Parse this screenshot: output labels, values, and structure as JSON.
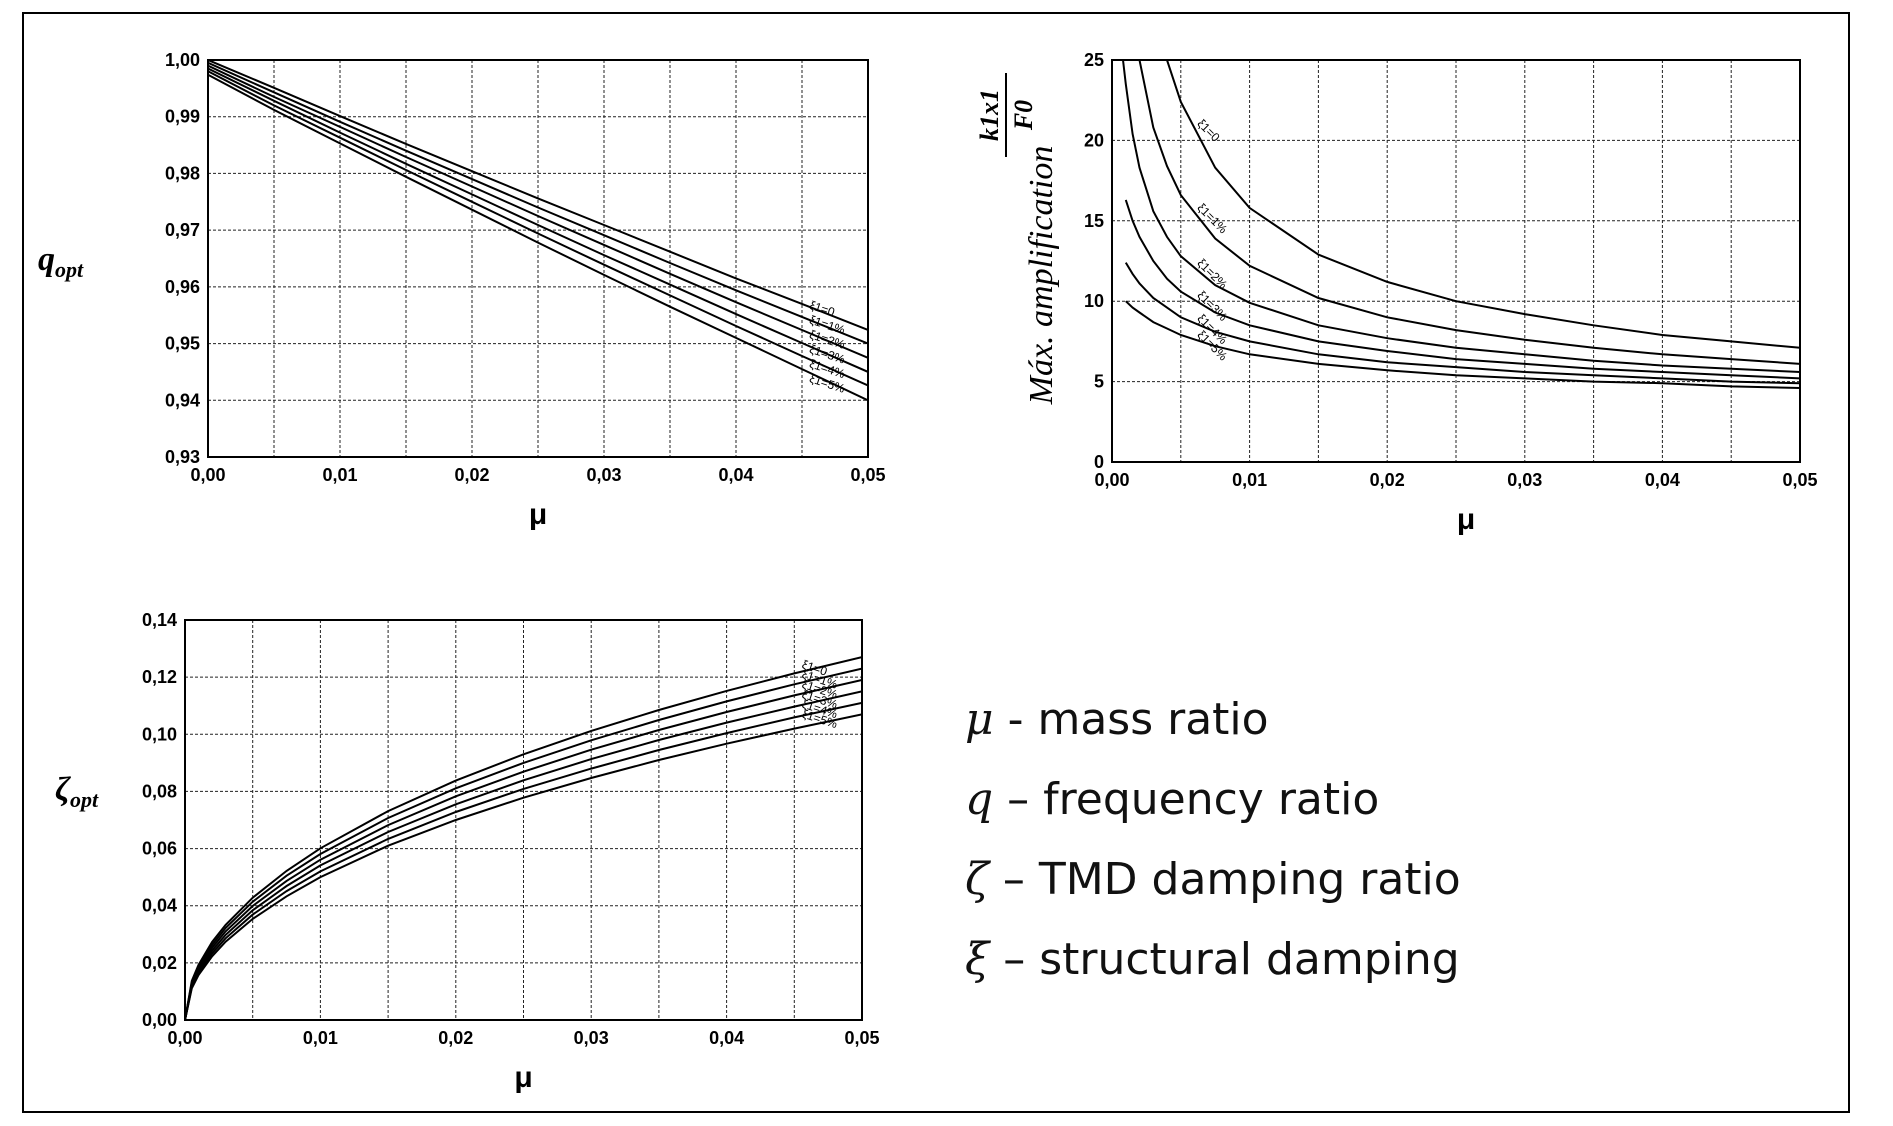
{
  "chart_data": [
    {
      "type": "line",
      "xlabel": "μ",
      "ylabel": "q",
      "ylabel_sub": "opt",
      "xlim": [
        0,
        0.05
      ],
      "ylim": [
        0.93,
        1.0
      ],
      "x_ticks": [
        "0,00",
        "0,01",
        "0,02",
        "0,03",
        "0,04",
        "0,05"
      ],
      "y_ticks": [
        "0,93",
        "0,94",
        "0,95",
        "0,96",
        "0,97",
        "0,98",
        "0,99",
        "1,00"
      ],
      "grid": true,
      "x": [
        0,
        0.005,
        0.01,
        0.015,
        0.02,
        0.025,
        0.03,
        0.035,
        0.04,
        0.045,
        0.05
      ],
      "series": [
        {
          "name": "ξ1=0",
          "values": [
            1.0,
            0.9951,
            0.9901,
            0.9852,
            0.9804,
            0.9756,
            0.9709,
            0.9662,
            0.9615,
            0.957,
            0.9524
          ]
        },
        {
          "name": "ξ1=1%",
          "values": [
            0.9995,
            0.9943,
            0.9891,
            0.984,
            0.979,
            0.974,
            0.9691,
            0.9642,
            0.9594,
            0.9547,
            0.95
          ]
        },
        {
          "name": "ξ1=2%",
          "values": [
            0.999,
            0.9935,
            0.9882,
            0.9829,
            0.9777,
            0.9725,
            0.9674,
            0.9623,
            0.9573,
            0.9524,
            0.9475
          ]
        },
        {
          "name": "ξ1=3%",
          "values": [
            0.9985,
            0.9928,
            0.9872,
            0.9817,
            0.9763,
            0.9709,
            0.9656,
            0.9604,
            0.9552,
            0.9501,
            0.945
          ]
        },
        {
          "name": "ξ1=4%",
          "values": [
            0.998,
            0.992,
            0.9863,
            0.9806,
            0.975,
            0.9694,
            0.9639,
            0.9585,
            0.9531,
            0.9478,
            0.9426
          ]
        },
        {
          "name": "ξ1=5%",
          "values": [
            0.9974,
            0.9912,
            0.9853,
            0.9794,
            0.9736,
            0.9678,
            0.9621,
            0.9565,
            0.951,
            0.9455,
            0.94
          ]
        }
      ]
    },
    {
      "type": "line",
      "xlabel": "μ",
      "ylabel": "Máx. amplification",
      "ylabel_num": "k1x1",
      "ylabel_den": "F0",
      "xlim": [
        0,
        0.05
      ],
      "ylim": [
        0,
        25
      ],
      "x_ticks": [
        "0,00",
        "0,01",
        "0,02",
        "0,03",
        "0,04",
        "0,05"
      ],
      "y_ticks": [
        "0",
        "5",
        "10",
        "15",
        "20",
        "25"
      ],
      "grid": true,
      "x": [
        0.0008,
        0.001,
        0.0015,
        0.002,
        0.003,
        0.004,
        0.005,
        0.0075,
        0.01,
        0.015,
        0.02,
        0.025,
        0.03,
        0.035,
        0.04,
        0.045,
        0.05
      ],
      "series": [
        {
          "name": "ξ1=0",
          "values": [
            null,
            null,
            null,
            null,
            null,
            25.0,
            22.4,
            18.3,
            15.8,
            12.9,
            11.2,
            10.0,
            9.2,
            8.5,
            7.9,
            7.5,
            7.1
          ]
        },
        {
          "name": "ξ1=1%",
          "values": [
            null,
            null,
            null,
            25.0,
            20.8,
            18.4,
            16.6,
            13.9,
            12.2,
            10.2,
            9.0,
            8.2,
            7.6,
            7.1,
            6.7,
            6.4,
            6.1
          ]
        },
        {
          "name": "ξ1=2%",
          "values": [
            25.0,
            23.5,
            20.4,
            18.3,
            15.6,
            14.0,
            12.8,
            11.0,
            9.9,
            8.5,
            7.7,
            7.1,
            6.7,
            6.3,
            6.0,
            5.8,
            5.6
          ]
        },
        {
          "name": "ξ1=3%",
          "values": [
            null,
            16.3,
            15.0,
            14.0,
            12.5,
            11.4,
            10.6,
            9.3,
            8.5,
            7.5,
            6.9,
            6.4,
            6.1,
            5.8,
            5.6,
            5.4,
            5.2
          ]
        },
        {
          "name": "ξ1=4%",
          "values": [
            null,
            12.4,
            11.7,
            11.1,
            10.2,
            9.6,
            9.0,
            8.1,
            7.5,
            6.7,
            6.2,
            5.9,
            5.6,
            5.4,
            5.2,
            5.0,
            4.9
          ]
        },
        {
          "name": "ξ1=5%",
          "values": [
            null,
            10.0,
            9.6,
            9.3,
            8.7,
            8.3,
            7.9,
            7.2,
            6.7,
            6.1,
            5.7,
            5.4,
            5.2,
            5.0,
            4.9,
            4.7,
            4.6
          ]
        }
      ]
    },
    {
      "type": "line",
      "xlabel": "μ",
      "ylabel": "ζ",
      "ylabel_sub": "opt",
      "xlim": [
        0,
        0.05
      ],
      "ylim": [
        0,
        0.14
      ],
      "x_ticks": [
        "0,00",
        "0,01",
        "0,02",
        "0,03",
        "0,04",
        "0,05"
      ],
      "y_ticks": [
        "0,00",
        "0,02",
        "0,04",
        "0,06",
        "0,08",
        "0,10",
        "0,12",
        "0,14"
      ],
      "grid": true,
      "x": [
        0,
        0.0005,
        0.001,
        0.002,
        0.003,
        0.005,
        0.0075,
        0.01,
        0.015,
        0.02,
        0.025,
        0.03,
        0.035,
        0.04,
        0.045,
        0.05
      ],
      "series": [
        {
          "name": "ξ1=0",
          "values": [
            0,
            0.0137,
            0.0193,
            0.0273,
            0.0333,
            0.0428,
            0.0522,
            0.0601,
            0.0731,
            0.0838,
            0.093,
            0.1012,
            0.1085,
            0.1152,
            0.1213,
            0.127
          ]
        },
        {
          "name": "ξ1=1%",
          "values": [
            0,
            0.0131,
            0.0186,
            0.0263,
            0.0322,
            0.0414,
            0.0505,
            0.0581,
            0.0707,
            0.0811,
            0.09,
            0.0979,
            0.105,
            0.1115,
            0.1175,
            0.123
          ]
        },
        {
          "name": "ξ1=2%",
          "values": [
            0,
            0.0126,
            0.0179,
            0.0253,
            0.031,
            0.0399,
            0.0487,
            0.0561,
            0.0682,
            0.0783,
            0.0869,
            0.0946,
            0.1015,
            0.1078,
            0.1136,
            0.119
          ]
        },
        {
          "name": "ξ1=3%",
          "values": [
            0,
            0.0121,
            0.0172,
            0.0243,
            0.0298,
            0.0384,
            0.0469,
            0.0541,
            0.0658,
            0.0755,
            0.0839,
            0.0913,
            0.098,
            0.1041,
            0.1097,
            0.115
          ]
        },
        {
          "name": "ξ1=4%",
          "values": [
            0,
            0.0116,
            0.0164,
            0.0233,
            0.0286,
            0.0369,
            0.0451,
            0.052,
            0.0634,
            0.0728,
            0.0809,
            0.088,
            0.0945,
            0.1004,
            0.1059,
            0.111
          ]
        },
        {
          "name": "ξ1=5%",
          "values": [
            0,
            0.0111,
            0.0157,
            0.0223,
            0.0274,
            0.0354,
            0.0433,
            0.05,
            0.061,
            0.07,
            0.0778,
            0.0847,
            0.091,
            0.0967,
            0.102,
            0.107
          ]
        }
      ]
    }
  ],
  "legend": {
    "items": [
      {
        "symbol": "μ",
        "text": " - mass ratio"
      },
      {
        "symbol": "q",
        "text": " – frequency ratio"
      },
      {
        "symbol": "ζ",
        "text": " – TMD damping ratio"
      },
      {
        "symbol": "ξ",
        "text": " – structural damping"
      }
    ]
  }
}
